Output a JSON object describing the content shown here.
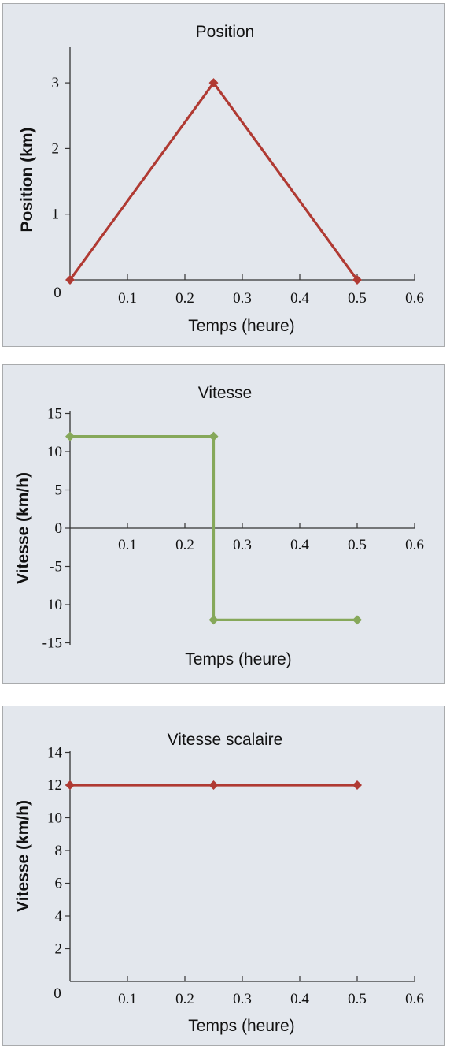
{
  "colors": {
    "position": "#b03a33",
    "velocity": "#86a85a",
    "speed": "#b03a33",
    "panel_bg": "#e3e7ed"
  },
  "chart_data": [
    {
      "type": "line",
      "title": "Position",
      "xlabel": "Temps (heure)",
      "ylabel": "Position (km)",
      "xlim": [
        0,
        0.6
      ],
      "ylim": [
        0,
        3.5
      ],
      "x_ticks": [
        "0.1",
        "0.2",
        "0.3",
        "0.4",
        "0.5",
        "0.6"
      ],
      "y_ticks": [
        "0",
        "1",
        "2",
        "3"
      ],
      "grid": false,
      "series": [
        {
          "x": [
            0,
            0.25,
            0.5
          ],
          "y": [
            0,
            3,
            0
          ]
        }
      ]
    },
    {
      "type": "line",
      "title": "Vitesse",
      "xlabel": "Temps (heure)",
      "ylabel": "Vitesse  (km/h)",
      "xlim": [
        0,
        0.6
      ],
      "ylim": [
        -15,
        15
      ],
      "x_ticks": [
        "0.1",
        "0.2",
        "0.3",
        "0.4",
        "0.5",
        "0.6"
      ],
      "y_ticks": [
        "15",
        "10",
        "5",
        "0",
        "-5",
        "10",
        "-15"
      ],
      "grid": false,
      "series": [
        {
          "x": [
            0,
            0.25,
            0.25,
            0.5
          ],
          "y": [
            12,
            12,
            -12,
            -12
          ]
        }
      ]
    },
    {
      "type": "line",
      "title": "Vitesse scalaire",
      "xlabel": "Temps (heure)",
      "ylabel": "Vitesse (km/h)",
      "xlim": [
        0,
        0.6
      ],
      "ylim": [
        0,
        14
      ],
      "x_ticks": [
        "0.1",
        "0.2",
        "0.3",
        "0.4",
        "0.5",
        "0.6"
      ],
      "y_ticks": [
        "0",
        "2",
        "4",
        "6",
        "8",
        "10",
        "12",
        "14"
      ],
      "grid": false,
      "series": [
        {
          "x": [
            0,
            0.25,
            0.5
          ],
          "y": [
            12,
            12,
            12
          ]
        }
      ]
    }
  ]
}
